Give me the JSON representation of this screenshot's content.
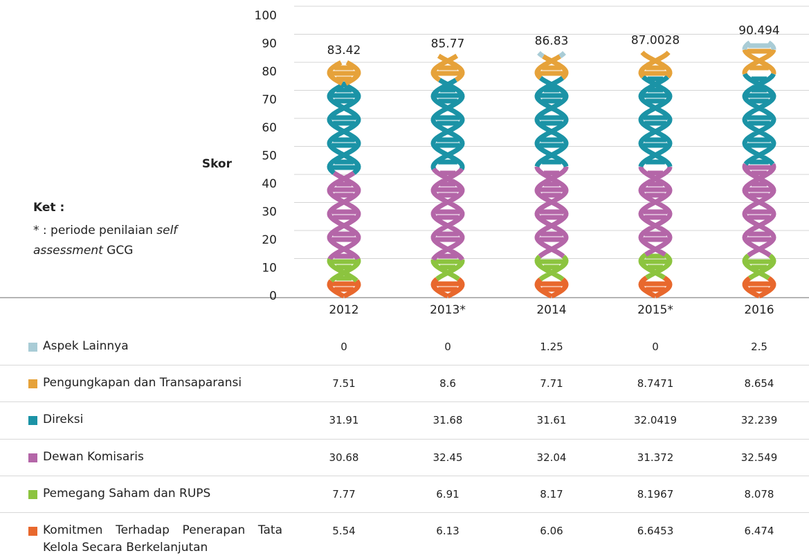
{
  "chart_data": {
    "type": "bar",
    "stacked": true,
    "y_label": "Skor",
    "categories": [
      "2012",
      "2013*",
      "2014",
      "2015*",
      "2016"
    ],
    "totals": [
      83.42,
      85.77,
      86.83,
      87.0028,
      90.494
    ],
    "ylim": [
      0,
      100
    ],
    "yticks": [
      0,
      10,
      20,
      30,
      40,
      50,
      60,
      70,
      80,
      90,
      100
    ],
    "grid": true,
    "series": [
      {
        "name": "Komitmen Terhadap Penerapan Tata Kelola Secara Berkelanjutan",
        "color": "#e8682d",
        "values": [
          5.54,
          6.13,
          6.06,
          6.6453,
          6.474
        ]
      },
      {
        "name": "Pemegang Saham dan RUPS",
        "color": "#8cc43f",
        "values": [
          7.77,
          6.91,
          8.17,
          8.1967,
          8.078
        ]
      },
      {
        "name": "Dewan Komisaris",
        "color": "#b466a8",
        "values": [
          30.68,
          32.45,
          32.04,
          31.372,
          32.549
        ]
      },
      {
        "name": "Direksi",
        "color": "#1b93a6",
        "values": [
          31.91,
          31.68,
          31.61,
          32.0419,
          32.239
        ]
      },
      {
        "name": "Pengungkapan dan Transaparansi",
        "color": "#e6a23a",
        "values": [
          7.51,
          8.6,
          7.71,
          8.7471,
          8.654
        ]
      },
      {
        "name": "Aspek Lainnya",
        "color": "#a9ccd6",
        "values": [
          0,
          0,
          1.25,
          0,
          2.5
        ]
      }
    ]
  },
  "note": {
    "title": "Ket :",
    "prefix": "* : periode penilaian ",
    "italic1": "self",
    "italic2": "assessment",
    "suffix": " GCG"
  }
}
